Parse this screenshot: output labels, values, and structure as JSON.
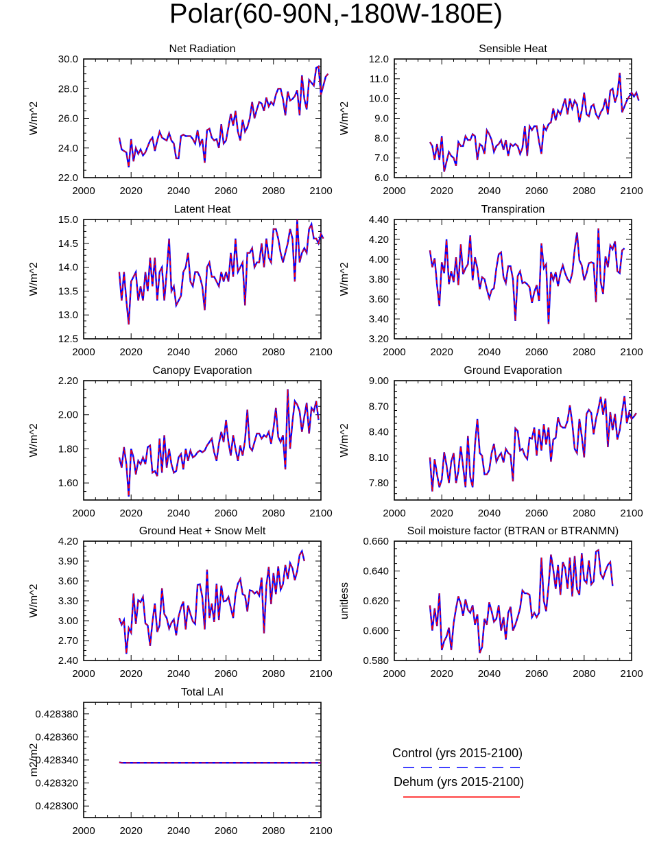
{
  "title": "Polar(60-90N,-180W-180E)",
  "legend": [
    {
      "label": "Control (yrs 2015-2100)",
      "color": "#0000ff",
      "style": "dashed"
    },
    {
      "label": "Dehum (yrs 2015-2100)",
      "color": "#ff0000",
      "style": "solid"
    }
  ],
  "chart_data": [
    {
      "type": "line",
      "title": "Net Radiation",
      "ylabel": "W/m^2",
      "xlabel": "",
      "xlim": [
        2000,
        2100
      ],
      "xticks": [
        "2000",
        "2020",
        "2040",
        "2060",
        "2080",
        "2100"
      ],
      "ylim": [
        22,
        30
      ],
      "yticks": [
        "22.0",
        "24.0",
        "26.0",
        "28.0",
        "30.0"
      ],
      "x_start": 2015,
      "series": [
        {
          "name": "Control",
          "values": [
            24.7,
            23.9,
            23.8,
            23.7,
            22.7,
            24.6,
            23.1,
            24.0,
            23.6,
            23.9,
            23.5,
            23.7,
            24.1,
            24.5,
            24.7,
            23.8,
            24.5,
            25.1,
            24.7,
            24.6,
            24.5,
            25.0,
            24.5,
            24.3,
            23.3,
            23.3,
            24.8,
            24.9,
            24.8,
            24.8,
            24.8,
            24.6,
            24.3,
            25.2,
            24.2,
            24.6,
            23.0,
            25.2,
            25.3,
            24.7,
            24.5,
            24.6,
            24.0,
            25.6,
            24.3,
            24.5,
            25.4,
            26.3,
            25.5,
            26.5,
            25.1,
            24.5,
            25.9,
            25.1,
            25.4,
            26.0,
            27.1,
            26.0,
            26.6,
            27.1,
            27.0,
            26.5,
            27.4,
            26.8,
            27.1,
            26.9,
            27.6,
            28.0,
            28.0,
            27.3,
            26.2,
            27.8,
            27.2,
            27.3,
            27.5,
            27.9,
            26.2,
            28.9,
            27.3,
            26.6,
            28.6,
            28.4,
            28.2,
            29.4,
            29.5,
            27.6,
            28.2,
            28.8,
            29.0
          ]
        }
      ]
    },
    {
      "type": "line",
      "title": "Sensible Heat",
      "ylabel": "W/m^2",
      "xlabel": "",
      "xlim": [
        2000,
        2100
      ],
      "xticks": [
        "2000",
        "2020",
        "2040",
        "2060",
        "2080",
        "2100"
      ],
      "ylim": [
        6,
        12
      ],
      "yticks": [
        "6.0",
        "7.0",
        "8.0",
        "9.0",
        "10.0",
        "11.0",
        "12.0"
      ],
      "x_start": 2015,
      "series": [
        {
          "name": "Control",
          "values": [
            7.8,
            7.6,
            6.9,
            7.7,
            6.9,
            8.1,
            6.3,
            6.8,
            7.3,
            7.1,
            7.0,
            6.6,
            7.8,
            7.6,
            7.6,
            8.1,
            7.9,
            7.9,
            8.2,
            8.1,
            6.9,
            7.7,
            7.6,
            7.2,
            8.4,
            8.2,
            7.9,
            7.3,
            7.6,
            7.7,
            7.9,
            7.4,
            7.9,
            7.1,
            7.7,
            7.6,
            7.7,
            7.6,
            7.2,
            7.5,
            8.6,
            7.1,
            8.6,
            8.4,
            8.6,
            8.6,
            7.8,
            7.2,
            8.6,
            8.4,
            8.7,
            8.8,
            9.5,
            8.9,
            9.4,
            9.2,
            9.6,
            10.0,
            9.2,
            10.0,
            9.5,
            9.9,
            9.7,
            8.8,
            9.4,
            10.3,
            9.2,
            9.1,
            9.6,
            9.7,
            9.2,
            9.0,
            9.3,
            9.5,
            10.0,
            9.2,
            10.4,
            10.5,
            9.8,
            10.2,
            11.3,
            9.3,
            9.6,
            9.9,
            10.1,
            10.3,
            10.1,
            10.3,
            9.9
          ]
        }
      ]
    },
    {
      "type": "line",
      "title": "Latent Heat",
      "ylabel": "W/m^2",
      "xlabel": "",
      "xlim": [
        2000,
        2100
      ],
      "xticks": [
        "2000",
        "2020",
        "2040",
        "2060",
        "2080",
        "2100"
      ],
      "ylim": [
        12.5,
        15.0
      ],
      "yticks": [
        "12.5",
        "13.0",
        "13.5",
        "14.0",
        "14.5",
        "15.0"
      ],
      "x_start": 2015,
      "series": [
        {
          "name": "Control",
          "values": [
            13.9,
            13.3,
            13.9,
            13.3,
            12.8,
            13.7,
            13.8,
            13.9,
            13.3,
            13.6,
            13.3,
            13.9,
            13.5,
            14.2,
            13.6,
            14.2,
            13.3,
            13.9,
            14.0,
            13.3,
            13.9,
            14.6,
            13.5,
            13.6,
            13.2,
            13.3,
            13.4,
            13.9,
            14.0,
            14.3,
            13.7,
            13.6,
            13.9,
            13.9,
            13.8,
            13.6,
            13.1,
            14.0,
            14.1,
            13.8,
            13.8,
            13.7,
            13.6,
            13.9,
            13.7,
            13.9,
            13.7,
            14.3,
            13.8,
            14.6,
            13.9,
            14.0,
            14.1,
            13.2,
            14.3,
            14.3,
            14.4,
            14.0,
            14.1,
            14.1,
            14.5,
            14.0,
            14.6,
            14.2,
            14.1,
            14.8,
            14.8,
            14.6,
            14.3,
            14.1,
            14.3,
            14.5,
            14.8,
            14.6,
            13.7,
            15.0,
            14.1,
            14.3,
            14.4,
            14.3,
            14.8,
            14.9,
            14.6,
            14.6,
            14.5,
            14.7,
            14.6
          ]
        }
      ]
    },
    {
      "type": "line",
      "title": "Transpiration",
      "ylabel": "W/m^2",
      "xlabel": "",
      "xlim": [
        2000,
        2100
      ],
      "xticks": [
        "2000",
        "2020",
        "2040",
        "2060",
        "2080",
        "2100"
      ],
      "ylim": [
        3.2,
        4.4
      ],
      "yticks": [
        "3.20",
        "3.40",
        "3.60",
        "3.80",
        "4.00",
        "4.20",
        "4.40"
      ],
      "x_start": 2015,
      "series": [
        {
          "name": "Control",
          "values": [
            4.09,
            3.92,
            4.01,
            3.74,
            3.53,
            3.97,
            3.86,
            4.2,
            3.75,
            3.88,
            3.77,
            4.02,
            3.74,
            4.15,
            3.85,
            3.91,
            3.95,
            4.24,
            3.79,
            4.02,
            3.91,
            3.7,
            3.82,
            3.8,
            3.7,
            3.61,
            3.69,
            3.71,
            3.91,
            4.05,
            4.07,
            3.82,
            3.76,
            3.93,
            3.93,
            3.8,
            3.38,
            3.83,
            3.88,
            3.76,
            3.77,
            3.75,
            3.72,
            3.56,
            3.67,
            3.74,
            3.58,
            4.16,
            3.91,
            3.95,
            3.35,
            3.87,
            3.79,
            3.87,
            3.73,
            3.86,
            3.94,
            3.86,
            3.8,
            3.77,
            3.86,
            4.1,
            4.27,
            3.99,
            3.94,
            3.79,
            3.86,
            3.96,
            3.97,
            3.96,
            3.57,
            4.31,
            3.77,
            3.65,
            4.03,
            3.92,
            4.14,
            4.1,
            4.18,
            3.88,
            3.86,
            4.09,
            4.11
          ]
        }
      ]
    },
    {
      "type": "line",
      "title": "Canopy Evaporation",
      "ylabel": "W/m^2",
      "xlabel": "",
      "xlim": [
        2000,
        2100
      ],
      "xticks": [
        "2000",
        "2020",
        "2040",
        "2060",
        "2080",
        "2100"
      ],
      "ylim": [
        1.5,
        2.2
      ],
      "yticks": [
        "1.60",
        "1.80",
        "2.00",
        "2.20"
      ],
      "x_start": 2015,
      "series": [
        {
          "name": "Control",
          "values": [
            1.75,
            1.69,
            1.81,
            1.71,
            1.52,
            1.8,
            1.75,
            1.65,
            1.73,
            1.71,
            1.75,
            1.71,
            1.81,
            1.82,
            1.66,
            1.67,
            1.64,
            1.86,
            1.66,
            1.88,
            1.69,
            1.8,
            1.71,
            1.66,
            1.67,
            1.75,
            1.77,
            1.68,
            1.8,
            1.73,
            1.79,
            1.75,
            1.76,
            1.78,
            1.79,
            1.78,
            1.79,
            1.82,
            1.84,
            1.86,
            1.78,
            1.73,
            1.83,
            1.9,
            1.84,
            1.97,
            1.84,
            1.76,
            1.88,
            1.8,
            1.73,
            1.82,
            1.76,
            1.85,
            2.03,
            1.81,
            1.79,
            1.84,
            1.89,
            1.89,
            1.86,
            1.88,
            1.87,
            1.9,
            1.83,
            1.92,
            2.04,
            1.87,
            1.84,
            1.88,
            1.68,
            2.15,
            1.8,
            1.96,
            2.08,
            2.06,
            2.02,
            1.9,
            1.99,
            2.07,
            1.89,
            2.04,
            2.02,
            2.08,
            1.97
          ]
        }
      ]
    },
    {
      "type": "line",
      "title": "Ground Evaporation",
      "ylabel": "W/m^2",
      "xlabel": "",
      "xlim": [
        2000,
        2100
      ],
      "xticks": [
        "2000",
        "2020",
        "2040",
        "2060",
        "2080",
        "2100"
      ],
      "ylim": [
        7.6,
        9.0
      ],
      "yticks": [
        "7.80",
        "8.10",
        "8.40",
        "8.70",
        "9.00"
      ],
      "x_start": 2015,
      "series": [
        {
          "name": "Control",
          "values": [
            8.1,
            7.7,
            8.08,
            7.9,
            7.75,
            7.84,
            8.16,
            8.01,
            7.8,
            8.05,
            8.15,
            7.8,
            7.94,
            8.23,
            7.99,
            7.75,
            8.35,
            7.87,
            7.75,
            8.25,
            8.55,
            8.15,
            8.12,
            7.9,
            7.9,
            7.95,
            8.15,
            8.26,
            8.05,
            8.11,
            8.15,
            8.04,
            8.2,
            8.15,
            8.13,
            7.82,
            8.44,
            8.41,
            8.18,
            8.2,
            8.12,
            8.08,
            8.33,
            8.32,
            8.45,
            8.12,
            8.43,
            8.18,
            8.49,
            8.25,
            8.45,
            8.05,
            8.31,
            8.33,
            8.57,
            8.47,
            8.45,
            8.45,
            8.53,
            8.71,
            8.5,
            8.2,
            8.15,
            8.55,
            8.35,
            8.1,
            8.61,
            8.66,
            8.62,
            8.37,
            8.55,
            8.67,
            8.81,
            8.6,
            8.79,
            8.22,
            8.63,
            8.42,
            8.61,
            8.31,
            8.42,
            8.63,
            8.82,
            8.5,
            8.63,
            8.55,
            8.58,
            8.62
          ]
        }
      ]
    },
    {
      "type": "line",
      "title": "Ground Heat + Snow Melt",
      "ylabel": "W/m^2",
      "xlabel": "",
      "xlim": [
        2000,
        2100
      ],
      "xticks": [
        "2000",
        "2020",
        "2040",
        "2060",
        "2080",
        "2100"
      ],
      "ylim": [
        2.4,
        4.2
      ],
      "yticks": [
        "2.40",
        "2.70",
        "3.00",
        "3.30",
        "3.60",
        "3.90",
        "4.20"
      ],
      "x_start": 2015,
      "series": [
        {
          "name": "Control",
          "values": [
            3.04,
            2.94,
            3.01,
            2.5,
            2.89,
            2.82,
            3.41,
            2.95,
            3.31,
            3.28,
            3.36,
            2.96,
            2.93,
            2.62,
            2.98,
            3.26,
            2.83,
            2.93,
            3.49,
            3.1,
            3.04,
            2.88,
            2.97,
            3.02,
            2.78,
            3.06,
            3.2,
            3.29,
            2.87,
            3.23,
            3.1,
            2.99,
            2.95,
            3.54,
            3.55,
            3.36,
            2.87,
            3.77,
            3.04,
            3.26,
            2.98,
            3.56,
            3.01,
            3.53,
            3.29,
            3.3,
            3.36,
            3.2,
            3.04,
            3.4,
            3.56,
            3.63,
            3.4,
            3.38,
            3.14,
            3.46,
            3.45,
            3.41,
            3.44,
            3.38,
            3.65,
            2.81,
            3.53,
            3.81,
            3.25,
            3.72,
            3.4,
            3.82,
            3.47,
            3.55,
            3.84,
            3.63,
            3.87,
            3.79,
            3.61,
            3.75,
            3.99,
            4.05,
            3.9
          ]
        }
      ]
    },
    {
      "type": "line",
      "title": "Soil moisture factor (BTRAN or BTRANMN)",
      "ylabel": "unitless",
      "xlabel": "",
      "xlim": [
        2000,
        2100
      ],
      "xticks": [
        "2000",
        "2020",
        "2040",
        "2060",
        "2080",
        "2100"
      ],
      "ylim": [
        0.58,
        0.66
      ],
      "yticks": [
        "0.580",
        "0.600",
        "0.620",
        "0.640",
        "0.660"
      ],
      "x_start": 2015,
      "series": [
        {
          "name": "Control",
          "values": [
            0.617,
            0.6,
            0.615,
            0.603,
            0.625,
            0.587,
            0.593,
            0.596,
            0.602,
            0.587,
            0.605,
            0.615,
            0.623,
            0.618,
            0.61,
            0.621,
            0.614,
            0.612,
            0.617,
            0.604,
            0.611,
            0.585,
            0.589,
            0.608,
            0.604,
            0.619,
            0.613,
            0.606,
            0.608,
            0.617,
            0.6,
            0.609,
            0.594,
            0.612,
            0.616,
            0.6,
            0.604,
            0.609,
            0.615,
            0.627,
            0.625,
            0.625,
            0.624,
            0.609,
            0.612,
            0.609,
            0.612,
            0.649,
            0.62,
            0.613,
            0.63,
            0.651,
            0.641,
            0.628,
            0.644,
            0.624,
            0.646,
            0.642,
            0.628,
            0.649,
            0.623,
            0.65,
            0.628,
            0.624,
            0.652,
            0.634,
            0.632,
            0.647,
            0.631,
            0.633,
            0.653,
            0.654,
            0.638,
            0.635,
            0.64,
            0.644,
            0.646,
            0.63
          ]
        }
      ]
    },
    {
      "type": "line",
      "title": "Total LAI",
      "ylabel": "m2/m2",
      "xlabel": "",
      "xlim": [
        2000,
        2100
      ],
      "xticks": [
        "2000",
        "2020",
        "2040",
        "2060",
        "2080",
        "2100"
      ],
      "ylim": [
        0.42829,
        0.42839
      ],
      "yticks": [
        "0.428300",
        "0.428320",
        "0.428340",
        "0.428360",
        "0.428380"
      ],
      "x_start": 2015,
      "series": [
        {
          "name": "Control",
          "values": [
            0.428338,
            0.4283375,
            0.4283375,
            0.4283375,
            0.4283375,
            0.4283375,
            0.4283375,
            0.4283375,
            0.4283375,
            0.4283375,
            0.4283375,
            0.4283375,
            0.4283375,
            0.4283375,
            0.4283375,
            0.4283375,
            0.4283375,
            0.4283375,
            0.4283375,
            0.4283375,
            0.4283375,
            0.4283375,
            0.4283375,
            0.4283375,
            0.4283375,
            0.4283375,
            0.4283375,
            0.4283375,
            0.4283375,
            0.4283375,
            0.4283375,
            0.4283375,
            0.4283375,
            0.4283375,
            0.4283375,
            0.4283375,
            0.4283375,
            0.4283375,
            0.4283375,
            0.4283375,
            0.4283375,
            0.4283375,
            0.4283375,
            0.4283375,
            0.4283375,
            0.4283375,
            0.4283375,
            0.4283375,
            0.4283375,
            0.4283375,
            0.4283375,
            0.4283375,
            0.4283375,
            0.4283375,
            0.4283375,
            0.4283375,
            0.4283375,
            0.4283375,
            0.4283375,
            0.4283375,
            0.4283375,
            0.4283375,
            0.4283375,
            0.4283375,
            0.4283375,
            0.4283375,
            0.4283375,
            0.4283375,
            0.4283375,
            0.4283375,
            0.4283375,
            0.4283375,
            0.4283375,
            0.4283375,
            0.4283375,
            0.4283375,
            0.4283375,
            0.4283375,
            0.4283375,
            0.4283375,
            0.4283375,
            0.4283375,
            0.4283375,
            0.4283375,
            0.4283375,
            0.4283375
          ]
        }
      ]
    }
  ]
}
